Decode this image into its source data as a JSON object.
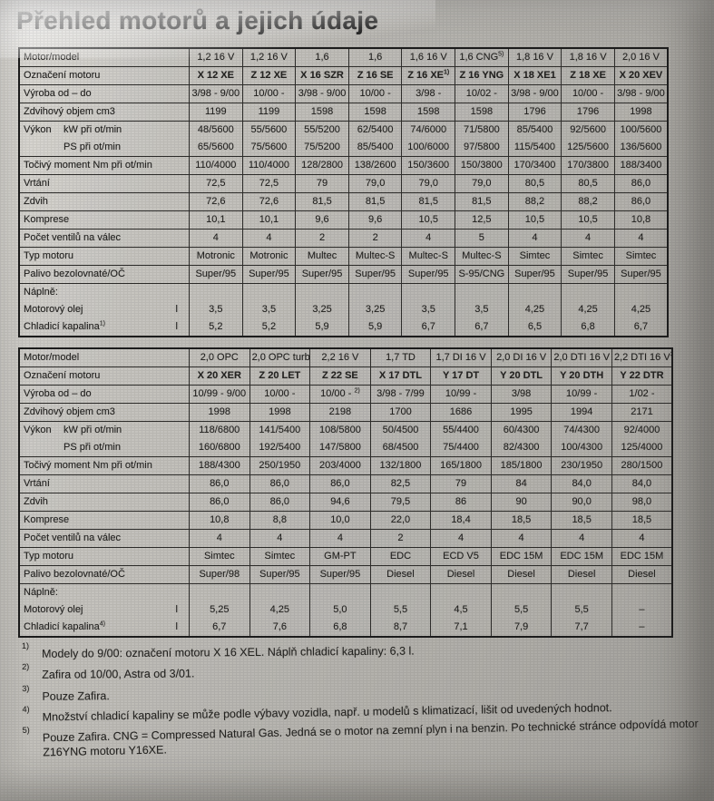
{
  "title": "Přehled motorů a jejich údaje",
  "tables": [
    {
      "cols": 9,
      "rows": [
        {
          "label": "Motor/model",
          "values": [
            "1,2 16 V",
            "1,2 16 V",
            "1,6",
            "1,6",
            "1,6 16 V",
            "1,6 CNG^5)",
            "1,8 16 V",
            "1,8 16 V",
            "2,0 16 V"
          ]
        },
        {
          "label": "Označení motoru",
          "bold": true,
          "values": [
            "X 12 XE",
            "Z 12 XE",
            "X 16 SZR",
            "Z 16 SE",
            "Z 16 XE^1)",
            "Z 16 YNG",
            "X 18 XE1",
            "Z 18 XE",
            "X 20 XEV"
          ]
        },
        {
          "label": "Výroba od – do",
          "values": [
            "3/98 - 9/00",
            "10/00 -",
            "3/98 - 9/00",
            "10/00 -",
            "3/98 -",
            "10/02 -",
            "3/98 - 9/00",
            "10/00 -",
            "3/98 - 9/00"
          ]
        },
        {
          "label": "Zdvihový objem cm3",
          "values": [
            "1199",
            "1199",
            "1598",
            "1598",
            "1598",
            "1598",
            "1796",
            "1796",
            "1998"
          ]
        },
        {
          "label": "Výkon",
          "label2": "kW při ot/min",
          "values": [
            "48/5600",
            "55/5600",
            "55/5200",
            "62/5400",
            "74/6000",
            "71/5800",
            "85/5400",
            "92/5600",
            "100/5600"
          ]
        },
        {
          "label": "",
          "label2": "PS při ot/min",
          "join": true,
          "values": [
            "65/5600",
            "75/5600",
            "75/5200",
            "85/5400",
            "100/6000",
            "97/5800",
            "115/5400",
            "125/5600",
            "136/5600"
          ]
        },
        {
          "label": "Točivý moment Nm při ot/min",
          "values": [
            "110/4000",
            "110/4000",
            "128/2800",
            "138/2600",
            "150/3600",
            "150/3800",
            "170/3400",
            "170/3800",
            "188/3400"
          ]
        },
        {
          "label": "Vrtání",
          "values": [
            "72,5",
            "72,5",
            "79",
            "79,0",
            "79,0",
            "79,0",
            "80,5",
            "80,5",
            "86,0"
          ]
        },
        {
          "label": "Zdvih",
          "values": [
            "72,6",
            "72,6",
            "81,5",
            "81,5",
            "81,5",
            "81,5",
            "88,2",
            "88,2",
            "86,0"
          ]
        },
        {
          "label": "Komprese",
          "values": [
            "10,1",
            "10,1",
            "9,6",
            "9,6",
            "10,5",
            "12,5",
            "10,5",
            "10,5",
            "10,8"
          ]
        },
        {
          "label": "Počet ventilů na válec",
          "values": [
            "4",
            "4",
            "2",
            "2",
            "4",
            "5",
            "4",
            "4",
            "4"
          ]
        },
        {
          "label": "Typ motoru",
          "values": [
            "Motronic",
            "Motronic",
            "Multec",
            "Multec-S",
            "Multec-S",
            "Multec-S",
            "Simtec",
            "Simtec",
            "Simtec"
          ]
        },
        {
          "label": "Palivo bezolovnaté/OČ",
          "values": [
            "Super/95",
            "Super/95",
            "Super/95",
            "Super/95",
            "Super/95",
            "S-95/CNG",
            "Super/95",
            "Super/95",
            "Super/95"
          ]
        },
        {
          "label": "Náplně:",
          "values": [
            "",
            "",
            "",
            "",
            "",
            "",
            "",
            "",
            ""
          ]
        },
        {
          "label": "Motorový olej",
          "unit": "l",
          "join": true,
          "values": [
            "3,5",
            "3,5",
            "3,25",
            "3,25",
            "3,5",
            "3,5",
            "4,25",
            "4,25",
            "4,25"
          ]
        },
        {
          "label": "Chladicí kapalina^1)",
          "unit": "l",
          "join": true,
          "values": [
            "5,2",
            "5,2",
            "5,9",
            "5,9",
            "6,7",
            "6,7",
            "6,5",
            "6,8",
            "6,7"
          ]
        }
      ]
    },
    {
      "cols": 8,
      "rows": [
        {
          "label": "Motor/model",
          "values": [
            "2,0 OPC",
            "2,0 OPC turbo",
            "2,2 16 V",
            "1,7 TD",
            "1,7 DI 16 V",
            "2,0 DI 16 V",
            "2,0 DTI 16 V",
            "2,2 DTI 16 V^3)"
          ]
        },
        {
          "label": "Označení motoru",
          "bold": true,
          "values": [
            "X 20 XER",
            "Z 20 LET",
            "Z 22 SE",
            "X 17 DTL",
            "Y 17 DT",
            "Y 20 DTL",
            "Y 20 DTH",
            "Y 22 DTR"
          ]
        },
        {
          "label": "Výroba od – do",
          "values": [
            "10/99 - 9/00",
            "10/00 -",
            "10/00 - ^2)",
            "3/98 - 7/99",
            "10/99 -",
            "3/98",
            "10/99 -",
            "1/02 -"
          ]
        },
        {
          "label": "Zdvihový objem cm3",
          "values": [
            "1998",
            "1998",
            "2198",
            "1700",
            "1686",
            "1995",
            "1994",
            "2171"
          ]
        },
        {
          "label": "Výkon",
          "label2": "kW při ot/min",
          "values": [
            "118/6800",
            "141/5400",
            "108/5800",
            "50/4500",
            "55/4400",
            "60/4300",
            "74/4300",
            "92/4000"
          ]
        },
        {
          "label": "",
          "label2": "PS při ot/min",
          "join": true,
          "values": [
            "160/6800",
            "192/5400",
            "147/5800",
            "68/4500",
            "75/4400",
            "82/4300",
            "100/4300",
            "125/4000"
          ]
        },
        {
          "label": "Točivý moment Nm při ot/min",
          "values": [
            "188/4300",
            "250/1950",
            "203/4000",
            "132/1800",
            "165/1800",
            "185/1800",
            "230/1950",
            "280/1500"
          ]
        },
        {
          "label": "Vrtání",
          "values": [
            "86,0",
            "86,0",
            "86,0",
            "82,5",
            "79",
            "84",
            "84,0",
            "84,0"
          ]
        },
        {
          "label": "Zdvih",
          "values": [
            "86,0",
            "86,0",
            "94,6",
            "79,5",
            "86",
            "90",
            "90,0",
            "98,0"
          ]
        },
        {
          "label": "Komprese",
          "values": [
            "10,8",
            "8,8",
            "10,0",
            "22,0",
            "18,4",
            "18,5",
            "18,5",
            "18,5"
          ]
        },
        {
          "label": "Počet ventilů na válec",
          "values": [
            "4",
            "4",
            "4",
            "2",
            "4",
            "4",
            "4",
            "4"
          ]
        },
        {
          "label": "Typ motoru",
          "values": [
            "Simtec",
            "Simtec",
            "GM-PT",
            "EDC",
            "ECD V5",
            "EDC 15M",
            "EDC 15M",
            "EDC 15M"
          ]
        },
        {
          "label": "Palivo bezolovnaté/OČ",
          "values": [
            "Super/98",
            "Super/95",
            "Super/95",
            "Diesel",
            "Diesel",
            "Diesel",
            "Diesel",
            "Diesel"
          ]
        },
        {
          "label": "Náplně:",
          "values": [
            "",
            "",
            "",
            "",
            "",
            "",
            "",
            ""
          ]
        },
        {
          "label": "Motorový olej",
          "unit": "l",
          "join": true,
          "values": [
            "5,25",
            "4,25",
            "5,0",
            "5,5",
            "4,5",
            "5,5",
            "5,5",
            "–"
          ]
        },
        {
          "label": "Chladicí kapalina^4)",
          "unit": "l",
          "join": true,
          "values": [
            "6,7",
            "7,6",
            "6,8",
            "8,7",
            "7,1",
            "7,9",
            "7,7",
            "–"
          ]
        }
      ]
    }
  ],
  "footnotes": [
    {
      "marker": "1)",
      "text": "Modely do 9/00: označení motoru X 16 XEL. Náplň chladicí kapaliny: 6,3 l."
    },
    {
      "marker": "2)",
      "text": "Zafira od 10/00, Astra od 3/01."
    },
    {
      "marker": "3)",
      "text": "Pouze Zafira."
    },
    {
      "marker": "4)",
      "text": "Množství chladicí kapaliny se může podle výbavy vozidla, např. u modelů s klimatizací, lišit od uvedených hodnot."
    },
    {
      "marker": "5)",
      "text": "Pouze Zafira. CNG = Compressed Natural Gas. Jedná se o motor na zemní plyn i na benzin. Po technické stránce odpovídá motor Z16YNG motoru Y16XE."
    }
  ]
}
